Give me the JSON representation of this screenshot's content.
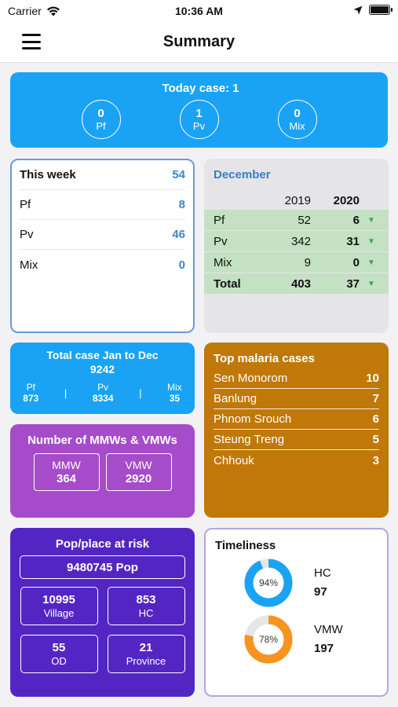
{
  "status": {
    "carrier": "Carrier",
    "time": "10:36 AM"
  },
  "nav": {
    "title": "Summary"
  },
  "today": {
    "title": "Today case:",
    "total": "1",
    "items": [
      {
        "value": "0",
        "label": "Pf"
      },
      {
        "value": "1",
        "label": "Pv"
      },
      {
        "value": "0",
        "label": "Mix"
      }
    ]
  },
  "week": {
    "title": "This week",
    "total": "54",
    "rows": [
      {
        "label": "Pf",
        "value": "8"
      },
      {
        "label": "Pv",
        "value": "46"
      },
      {
        "label": "Mix",
        "value": "0"
      }
    ]
  },
  "december": {
    "title": "December",
    "year_prev": "2019",
    "year_curr": "2020",
    "rows": [
      {
        "label": "Pf",
        "prev": "52",
        "curr": "6"
      },
      {
        "label": "Pv",
        "prev": "342",
        "curr": "31"
      },
      {
        "label": "Mix",
        "prev": "9",
        "curr": "0"
      },
      {
        "label": "Total",
        "prev": "403",
        "curr": "37"
      }
    ]
  },
  "total_card": {
    "title": "Total case Jan to Dec",
    "value": "9242",
    "items": [
      {
        "label": "Pf",
        "value": "873"
      },
      {
        "label": "Pv",
        "value": "8334"
      },
      {
        "label": "Mix",
        "value": "35"
      }
    ]
  },
  "mmw": {
    "title": "Number of MMWs & VMWs",
    "items": [
      {
        "label": "MMW",
        "value": "364"
      },
      {
        "label": "VMW",
        "value": "2920"
      }
    ]
  },
  "top_malaria": {
    "title": "Top malaria cases",
    "rows": [
      {
        "name": "Sen Monorom",
        "value": "10"
      },
      {
        "name": "Banlung",
        "value": "7"
      },
      {
        "name": "Phnom Srouch",
        "value": "6"
      },
      {
        "name": "Steung Treng",
        "value": "5"
      },
      {
        "name": "Chhouk",
        "value": "3"
      }
    ]
  },
  "pop": {
    "title": "Pop/place at risk",
    "pop_value": "9480745 Pop",
    "items": [
      {
        "value": "10995",
        "label": "Village"
      },
      {
        "value": "853",
        "label": "HC"
      },
      {
        "value": "55",
        "label": "OD"
      },
      {
        "value": "21",
        "label": "Province"
      }
    ]
  },
  "timeliness": {
    "title": "Timeliness",
    "items": [
      {
        "label": "HC",
        "value": "97",
        "percent": 94,
        "percent_text": "94%",
        "color": "#1aa3f5"
      },
      {
        "label": "VMW",
        "value": "197",
        "percent": 78,
        "percent_text": "78%",
        "color": "#f7941d"
      }
    ]
  },
  "colors": {
    "blue": "#1aa3f5",
    "purple": "#a64bc9",
    "orange": "#c07808",
    "indigo": "#5326c4",
    "green_row": "#c4e1c3"
  }
}
